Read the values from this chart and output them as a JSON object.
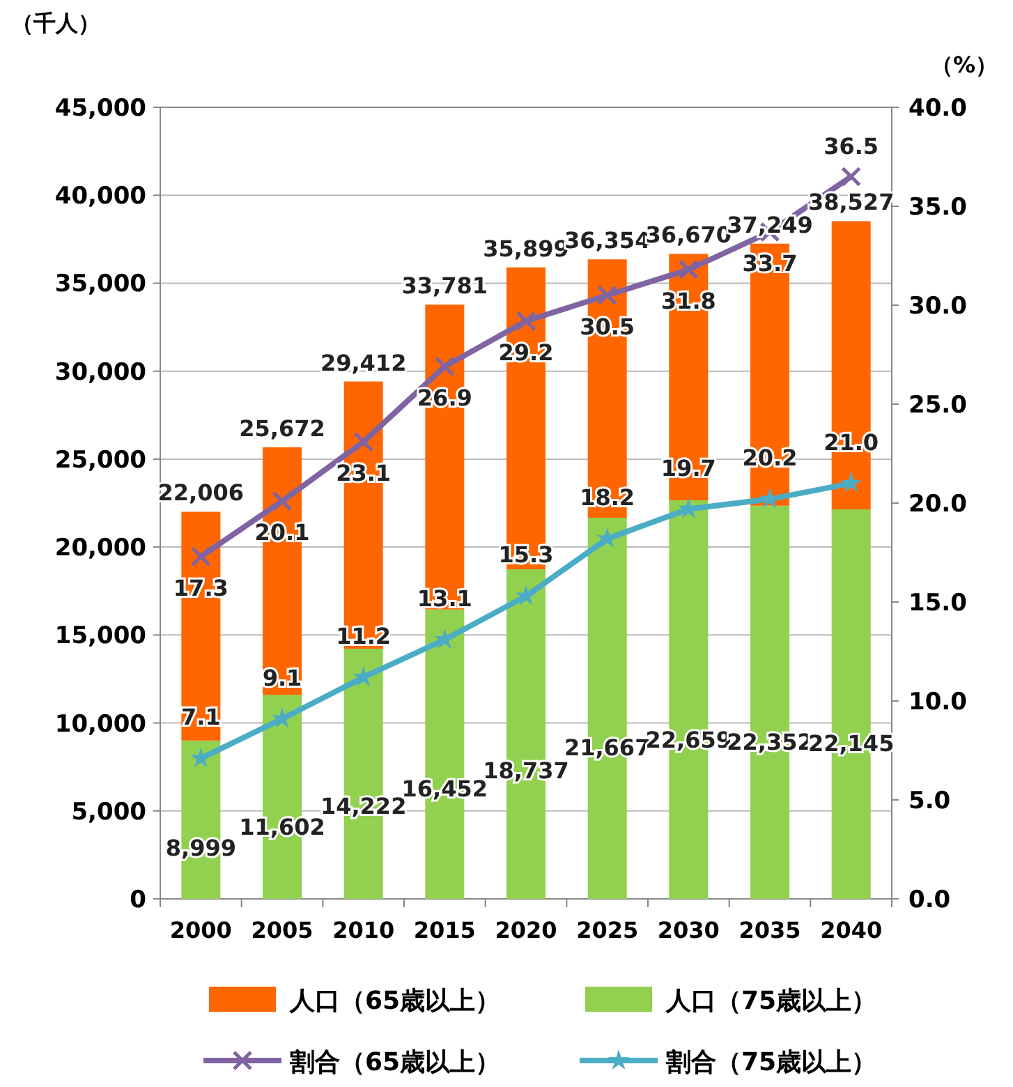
{
  "chart_data": {
    "type": "bar",
    "stacked": true,
    "ylabel": "（千人）",
    "y2label": "（%）",
    "categories": [
      "2000",
      "2005",
      "2010",
      "2015",
      "2020",
      "2025",
      "2030",
      "2035",
      "2040"
    ],
    "series": [
      {
        "name": "人口（75歳以上）",
        "color": "#92d050",
        "values": [
          8999,
          11602,
          14222,
          16452,
          18737,
          21667,
          22659,
          22352,
          22145
        ],
        "value_labels": [
          "8,999",
          "11,602",
          "14,222",
          "16,452",
          "18,737",
          "21,667",
          "22,659",
          "22,352",
          "22,145"
        ]
      },
      {
        "name": "人口（65歳以上）",
        "color": "#ff6600",
        "values": [
          13007,
          14070,
          15190,
          17329,
          17162,
          14687,
          14011,
          14897,
          16382
        ]
      },
      {
        "name": "割合（65歳以上）",
        "type": "line",
        "axis": "y2",
        "marker": "cross",
        "color": "#8064a2",
        "values": [
          17.3,
          20.1,
          23.1,
          26.9,
          29.2,
          30.5,
          31.8,
          33.7,
          36.5
        ],
        "value_labels": [
          "17.3",
          "20.1",
          "23.1",
          "26.9",
          "29.2",
          "30.5",
          "31.8",
          "33.7",
          "36.5"
        ]
      },
      {
        "name": "割合（75歳以上）",
        "type": "line",
        "axis": "y2",
        "marker": "star",
        "color": "#4bacc6",
        "values": [
          7.1,
          9.1,
          11.2,
          13.1,
          15.3,
          18.2,
          19.7,
          20.2,
          21.0
        ],
        "value_labels": [
          "7.1",
          "9.1",
          "11.2",
          "13.1",
          "15.3",
          "18.2",
          "19.7",
          "20.2",
          "21.0"
        ]
      }
    ],
    "ylim": [
      0,
      45000
    ],
    "yticks": [
      {
        "value": 0,
        "label": "0"
      },
      {
        "value": 5000,
        "label": "5,000"
      },
      {
        "value": 10000,
        "label": "10,000"
      },
      {
        "value": 15000,
        "label": "15,000"
      },
      {
        "value": 20000,
        "label": "20,000"
      },
      {
        "value": 25000,
        "label": "25,000"
      },
      {
        "value": 30000,
        "label": "30,000"
      },
      {
        "value": 35000,
        "label": "35,000"
      },
      {
        "value": 40000,
        "label": "40,000"
      },
      {
        "value": 45000,
        "label": "45,000"
      }
    ],
    "y2lim": [
      0,
      40
    ],
    "y2ticks": [
      {
        "value": 0,
        "label": "0.0"
      },
      {
        "value": 5,
        "label": "5.0"
      },
      {
        "value": 10,
        "label": "10.0"
      },
      {
        "value": 15,
        "label": "15.0"
      },
      {
        "value": 20,
        "label": "20.0"
      },
      {
        "value": 25,
        "label": "25.0"
      },
      {
        "value": 30,
        "label": "30.0"
      },
      {
        "value": 35,
        "label": "35.0"
      },
      {
        "value": 40,
        "label": "40.0"
      }
    ],
    "totals": [
      "22,006",
      "25,672",
      "29,412",
      "33,781",
      "35,899",
      "36,354",
      "36,670",
      "37,249",
      "38,527"
    ],
    "grid": "y",
    "legend": "bottom"
  }
}
